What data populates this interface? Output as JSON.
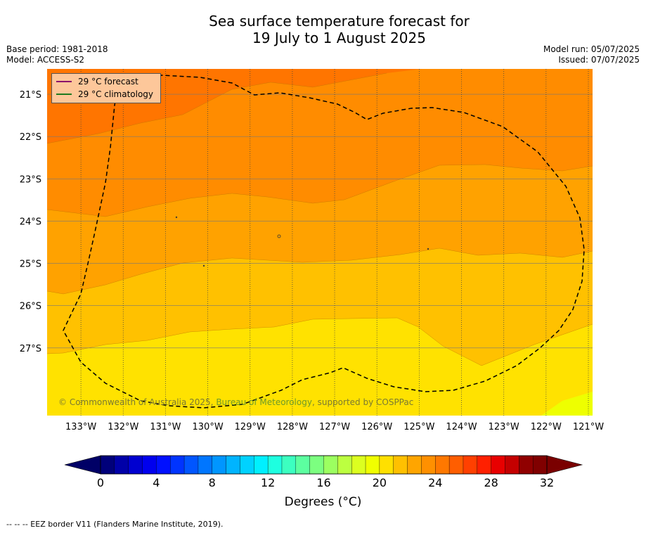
{
  "title_line1": "Sea surface temperature forecast for",
  "title_line2": "19 July to 1 August 2025",
  "base_period": "Base period: 1981-2018",
  "model": "Model: ACCESS-S2",
  "model_run": "Model run: 05/07/2025",
  "issued": "Issued: 07/07/2025",
  "legend": {
    "forecast": {
      "label": "29 °C  forecast",
      "color": "#8b0a6b"
    },
    "climatology": {
      "label": "29 °C  climatology",
      "color": "#1f7a1f"
    }
  },
  "map": {
    "lon_range": [
      -133.8,
      -120.9
    ],
    "lat_range": [
      -28.6,
      -20.4
    ],
    "lat_ticks": [
      "21°S",
      "22°S",
      "23°S",
      "24°S",
      "25°S",
      "26°S",
      "27°S"
    ],
    "lon_ticks": [
      "133°W",
      "132°W",
      "131°W",
      "130°W",
      "129°W",
      "128°W",
      "127°W",
      "126°W",
      "125°W",
      "124°W",
      "123°W",
      "122°W",
      "121°W"
    ],
    "gridlines": true,
    "contour_band_colors": [
      "#ff7700",
      "#ff8c00",
      "#ffa200",
      "#ffc100",
      "#ffe200",
      "#eeff00"
    ],
    "eez_border_style": "dashed"
  },
  "copyright_prefix": "© Commonwealth of Australia 2025, ",
  "copyright_bom": "Bureau of Meteorology",
  "copyright_suffix": ", supported by COSPPac",
  "colorbar": {
    "min": 0,
    "max": 32,
    "step": 1,
    "tick_labels": [
      "0",
      "4",
      "8",
      "12",
      "16",
      "20",
      "24",
      "28",
      "32"
    ],
    "title": "Degrees (°C)",
    "colors": [
      "#00007a",
      "#0000a8",
      "#0000d0",
      "#0000ee",
      "#0010ff",
      "#0034ff",
      "#0056ff",
      "#0076ff",
      "#0096ff",
      "#00b4ff",
      "#00d2ff",
      "#00f0ff",
      "#1effe0",
      "#3cffc0",
      "#5cffa0",
      "#7cff80",
      "#9cff60",
      "#bcff40",
      "#dcff20",
      "#f0ff00",
      "#ffe000",
      "#ffc000",
      "#ffa500",
      "#ff9000",
      "#ff7800",
      "#ff5e00",
      "#ff4000",
      "#ff2000",
      "#e80000",
      "#c40000",
      "#900000",
      "#800000"
    ],
    "under_color": "#000066",
    "over_color": "#7a0000"
  },
  "eez_note": "--  --  -- EEZ border V11 (Flanders Marine Institute, 2019)."
}
